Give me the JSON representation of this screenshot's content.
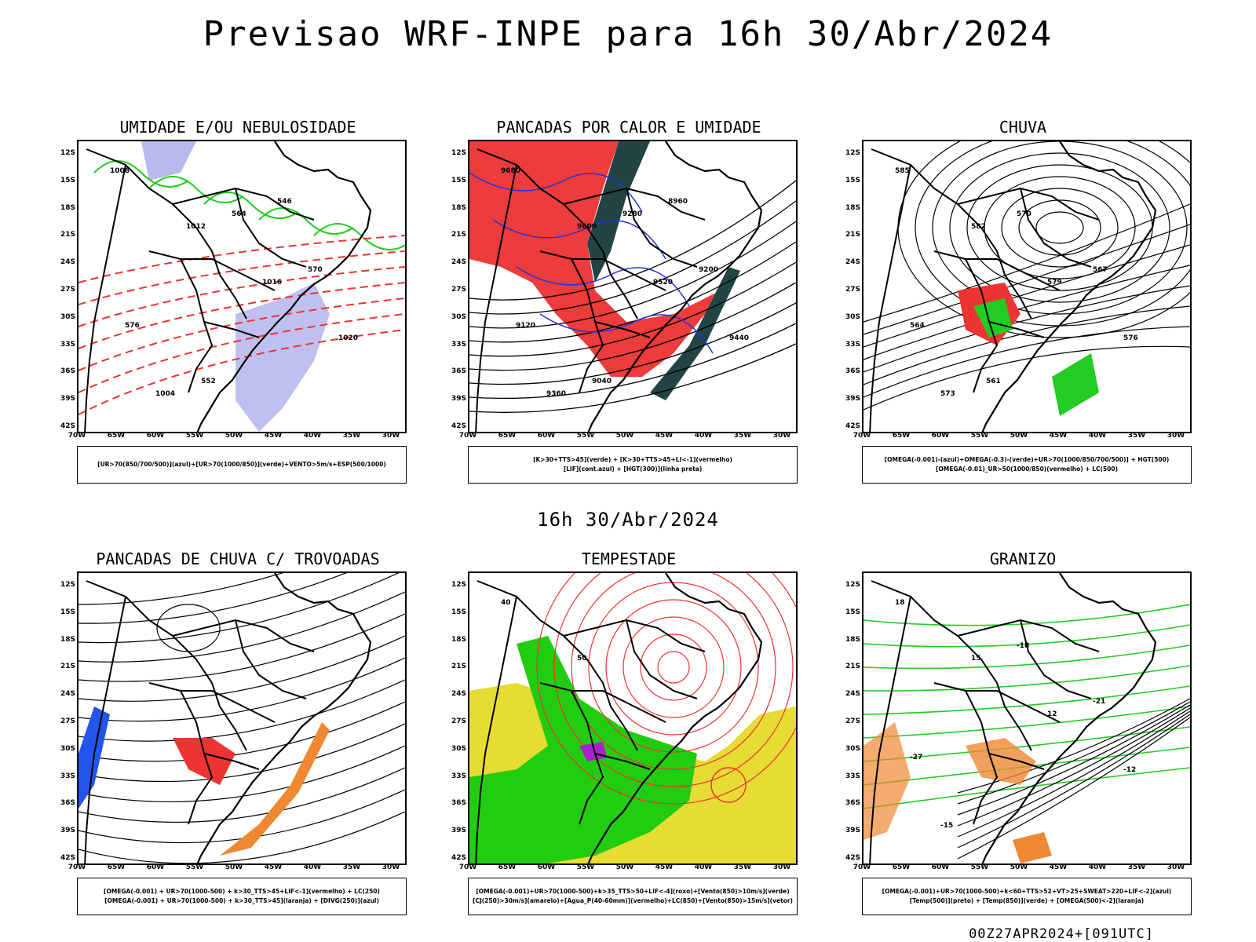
{
  "header": {
    "title": "Previsao WRF-INPE  para 16h 30/Abr/2024"
  },
  "mid": {
    "title": "16h 30/Abr/2024"
  },
  "footer": {
    "run": "00Z27APR2024+[091UTC]"
  },
  "axes": {
    "lat_labels": [
      "12S",
      "15S",
      "18S",
      "21S",
      "24S",
      "27S",
      "30S",
      "33S",
      "36S",
      "39S",
      "42S"
    ],
    "lon_labels": [
      "70W",
      "65W",
      "60W",
      "55W",
      "50W",
      "45W",
      "40W",
      "35W",
      "30W"
    ]
  },
  "panels": [
    {
      "title": "UMIDADE E/OU NEBULOSIDADE",
      "legend": [
        "[UR>70(850/700/500)](azul)+[UR>70(1000/850)](verde)+VENTO>5m/s+ESP(500/1000)"
      ],
      "colors": {
        "fill": "#b9b9ee",
        "green": "#22cc22",
        "red": "#ee3333"
      },
      "contour_labels": [
        "1008",
        "1012",
        "1016",
        "1020",
        "1004",
        "564",
        "570",
        "576",
        "552",
        "546"
      ]
    },
    {
      "title": "PANCADAS POR CALOR E UMIDADE",
      "legend": [
        "[K>30+TTS>45](verde) + [K>30+TTS>45+LI<-1](vermelho)",
        "[LIF](cont.azul) + [HGT(300)](linha preta)"
      ],
      "colors": {
        "red": "#ee3b3b",
        "dark": "#224444",
        "blue": "#2233dd"
      },
      "contour_labels": [
        "9680",
        "9600",
        "9520",
        "9440",
        "9360",
        "9280",
        "9200",
        "9120",
        "9040",
        "8960"
      ]
    },
    {
      "title": "CHUVA",
      "legend": [
        "[OMEGA(-0.001)-(azul)+OMEGA(-0.3)-(verde)+UR>70(1000/850/700/500)] + HGT(500)",
        "[OMEGA(-0.01)_UR>50(1000/850)(vermelho) + LC(500)"
      ],
      "colors": {
        "red": "#ee3333",
        "green": "#22cc22",
        "blue": "#2244ee"
      },
      "contour_labels": [
        "585",
        "582",
        "579",
        "576",
        "573",
        "570",
        "567",
        "564",
        "561"
      ]
    },
    {
      "title": "PANCADAS DE CHUVA C/ TROVOADAS",
      "legend": [
        "[OMEGA(-0.001) + UR>70(1000-500) + k>30_TTS>45+LIF<-1](vermelho) + LC(250)",
        "[OMEGA(-0.001) + UR>70(1000-500) + k>30_TTS>45](laranja) + [DIVG(250)](azul)"
      ],
      "colors": {
        "red": "#ee3333",
        "orange": "#ee8833",
        "blue": "#2255ee"
      },
      "contour_labels": []
    },
    {
      "title": "TEMPESTADE",
      "legend": [
        "[OMEGA(-0.001)+UR>70(1000-500)+k>35_TTS>50+LIF<-4](roxo)+[Vento(850)>10m/s](verde)",
        "[CJ(250)>30m/s](amarelo)+[Agua_P(40-60mm)](vermelho)+LC(850)+[Vento(850)>15m/s](vetor)"
      ],
      "colors": {
        "yellow": "#e6dc33",
        "green": "#22cc11",
        "red": "#ee3333",
        "purple": "#aa22cc"
      },
      "contour_labels": [
        "40",
        "50"
      ]
    },
    {
      "title": "GRANIZO",
      "legend": [
        "[OMEGA(-0.001)+UR>70(1000-500)+k<60+TTS>52+VT>25+SWEAT>220+LIF<-2](azul)",
        "[Temp(500)](preto) + [Temp(850)](verde) + [OMEGA(500)<-2](laranja)"
      ],
      "colors": {
        "green": "#22cc22",
        "orange": "#ee8833",
        "blue": "#2244ee"
      },
      "contour_labels": [
        "18",
        "15",
        "12",
        "-12",
        "-15",
        "-18",
        "-21",
        "-27"
      ]
    }
  ]
}
